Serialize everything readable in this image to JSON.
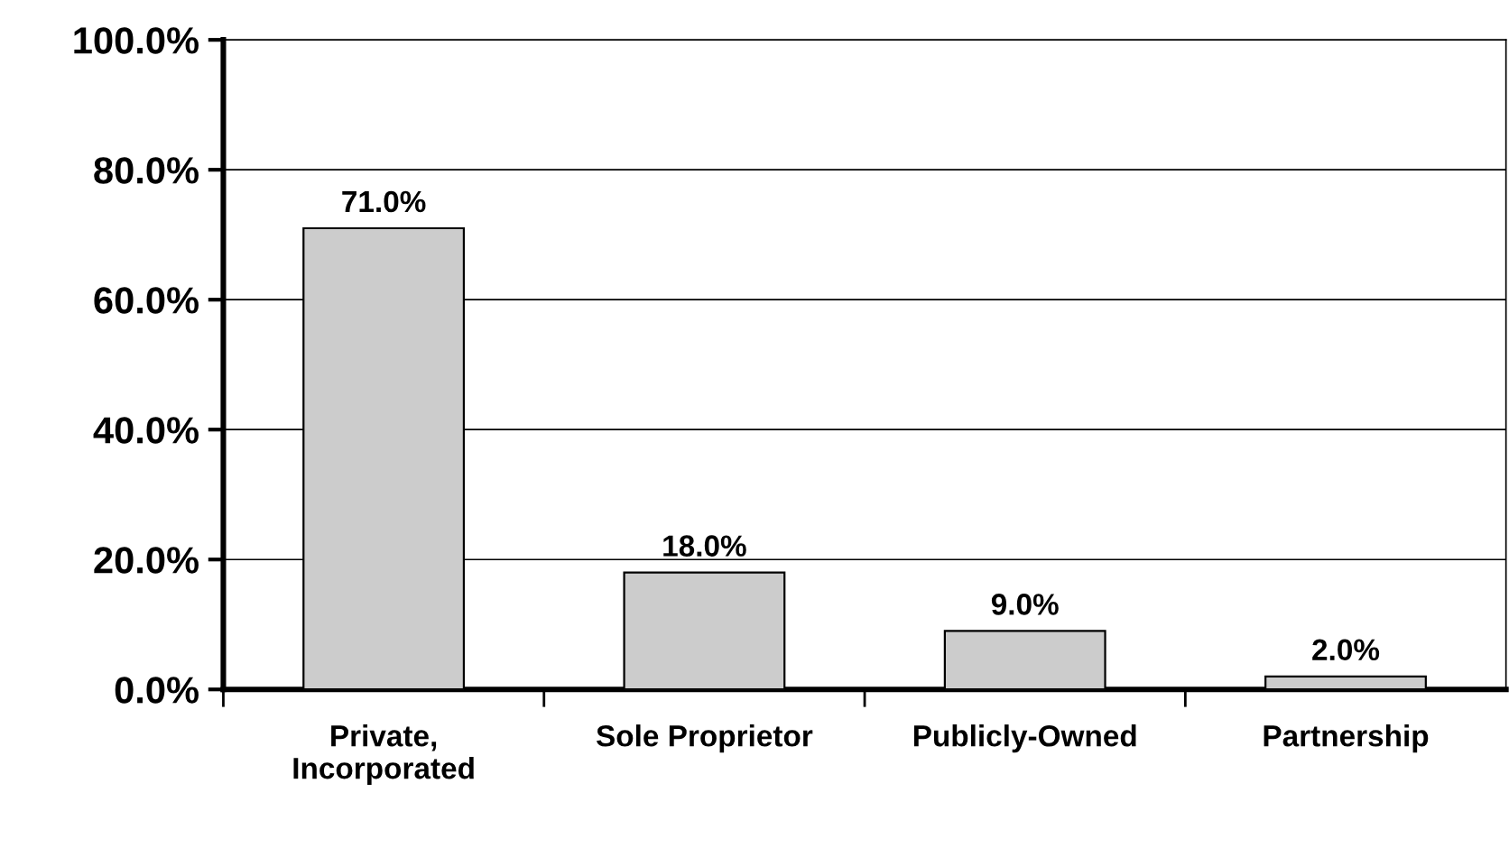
{
  "chart_data": {
    "type": "bar",
    "categories": [
      "Private,\nIncorporated",
      "Sole Proprietor",
      "Publicly-Owned",
      "Partnership"
    ],
    "values": [
      71,
      18,
      9,
      2
    ],
    "value_labels": [
      "71.0%",
      "18.0%",
      "9.0%",
      "2.0%"
    ],
    "color": "#cccccc",
    "ylim": [
      0,
      100
    ],
    "yticks": [
      {
        "value": 0,
        "label": "0.0%"
      },
      {
        "value": 20,
        "label": "20.0%"
      },
      {
        "value": 40,
        "label": "40.0%"
      },
      {
        "value": 60,
        "label": "60.0%"
      },
      {
        "value": 80,
        "label": "80.0%"
      },
      {
        "value": 100,
        "label": "100.0%"
      }
    ],
    "grid": "y",
    "legend": false
  }
}
